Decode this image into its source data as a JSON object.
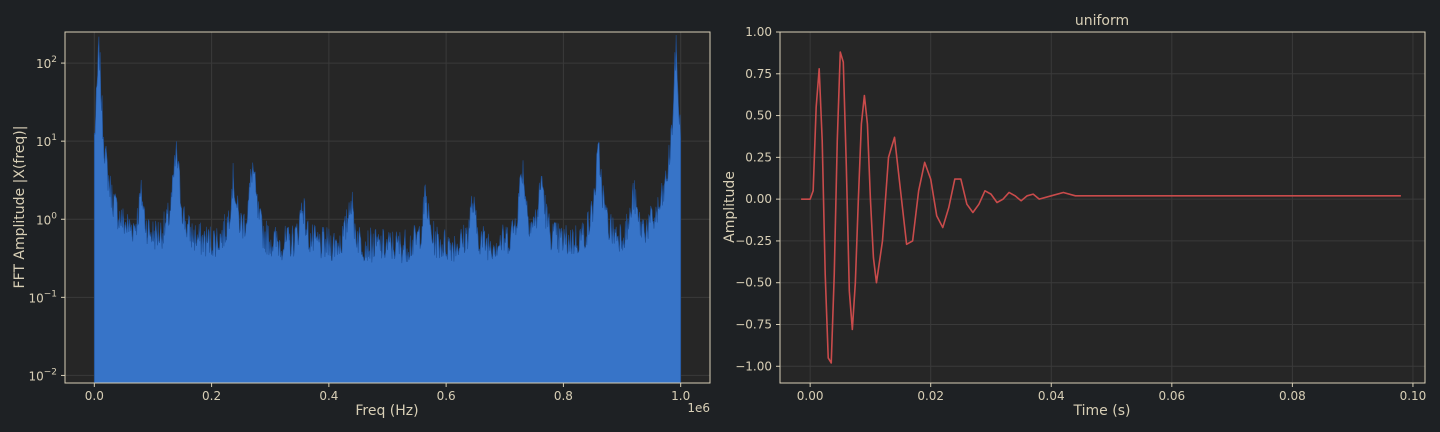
{
  "colors": {
    "background": "#1e2124",
    "axes_face": "#262626",
    "axes_edge": "#d8cfb6",
    "grid": "#3a3a3a",
    "text": "#d8cfb6",
    "fft_fill": "#3774c8",
    "signal_line": "#c94b4b"
  },
  "chart_data": [
    {
      "type": "area",
      "title": "",
      "xlabel": "Freq (Hz)",
      "ylabel": "FFT Amplitude |X(freq)|",
      "x_offset_label": "1e6",
      "yscale": "log",
      "xlim": [
        -0.05,
        1.05
      ],
      "ylim": [
        0.008,
        250
      ],
      "grid": true,
      "xticks": [
        0.0,
        0.2,
        0.4,
        0.6,
        0.8,
        1.0
      ],
      "xtick_labels": [
        "0.0",
        "0.2",
        "0.4",
        "0.6",
        "0.8",
        "1.0"
      ],
      "yticks": [
        0.01,
        0.1,
        1,
        10,
        100
      ],
      "ytick_labels": [
        [
          "10",
          "−2"
        ],
        [
          "10",
          "−1"
        ],
        [
          "10",
          "0"
        ],
        [
          "10",
          "1"
        ],
        [
          "10",
          "2"
        ]
      ],
      "x_range": [
        0.0,
        1.0
      ],
      "noise_floor": 0.45,
      "peaks": [
        {
          "x": 0.008,
          "y": 150
        },
        {
          "x": 0.08,
          "y": 1.5
        },
        {
          "x": 0.14,
          "y": 6.5
        },
        {
          "x": 0.237,
          "y": 2.8
        },
        {
          "x": 0.27,
          "y": 4.3
        },
        {
          "x": 0.355,
          "y": 1.2
        },
        {
          "x": 0.437,
          "y": 1.5
        },
        {
          "x": 0.565,
          "y": 1.5
        },
        {
          "x": 0.645,
          "y": 1.2
        },
        {
          "x": 0.73,
          "y": 4.3
        },
        {
          "x": 0.763,
          "y": 2.8
        },
        {
          "x": 0.86,
          "y": 6.5
        },
        {
          "x": 0.92,
          "y": 1.5
        },
        {
          "x": 0.992,
          "y": 150
        }
      ]
    },
    {
      "type": "line",
      "title": "uniform",
      "xlabel": "Time (s)",
      "ylabel": "Amplitude",
      "xlim": [
        -0.005,
        0.102
      ],
      "ylim": [
        -1.1,
        1.0
      ],
      "grid": true,
      "xticks": [
        0.0,
        0.02,
        0.04,
        0.06,
        0.08,
        0.1
      ],
      "xtick_labels": [
        "0.00",
        "0.02",
        "0.04",
        "0.06",
        "0.08",
        "0.10"
      ],
      "yticks": [
        1.0,
        0.75,
        0.5,
        0.25,
        0.0,
        -0.25,
        -0.5,
        -0.75,
        -1.0
      ],
      "ytick_labels": [
        "1.00",
        "0.75",
        "0.50",
        "0.25",
        "0.00",
        "−0.25",
        "−0.50",
        "−0.75",
        "−1.00"
      ],
      "series": [
        {
          "x": [
            -0.0015,
            0.0,
            0.0005,
            0.001,
            0.0015,
            0.002,
            0.0025,
            0.003,
            0.0035,
            0.004,
            0.0045,
            0.005,
            0.0055,
            0.006,
            0.0065,
            0.007,
            0.0075,
            0.008,
            0.0085,
            0.009,
            0.0095,
            0.01,
            0.0105,
            0.011,
            0.012,
            0.013,
            0.014,
            0.015,
            0.016,
            0.017,
            0.018,
            0.019,
            0.02,
            0.021,
            0.022,
            0.023,
            0.024,
            0.025,
            0.026,
            0.027,
            0.028,
            0.029,
            0.03,
            0.031,
            0.032,
            0.033,
            0.034,
            0.035,
            0.036,
            0.037,
            0.038,
            0.04,
            0.042,
            0.044,
            0.06,
            0.08,
            0.098
          ],
          "y": [
            0.0,
            0.0,
            0.05,
            0.55,
            0.78,
            0.35,
            -0.45,
            -0.95,
            -0.98,
            -0.45,
            0.35,
            0.88,
            0.82,
            0.2,
            -0.55,
            -0.78,
            -0.5,
            0.0,
            0.45,
            0.62,
            0.45,
            0.0,
            -0.35,
            -0.5,
            -0.25,
            0.25,
            0.37,
            0.05,
            -0.27,
            -0.25,
            0.05,
            0.22,
            0.12,
            -0.1,
            -0.17,
            -0.05,
            0.12,
            0.12,
            -0.03,
            -0.08,
            -0.03,
            0.05,
            0.03,
            -0.02,
            0.0,
            0.04,
            0.02,
            -0.01,
            0.02,
            0.03,
            0.0,
            0.02,
            0.04,
            0.02,
            0.02,
            0.02,
            0.02
          ]
        }
      ]
    }
  ]
}
